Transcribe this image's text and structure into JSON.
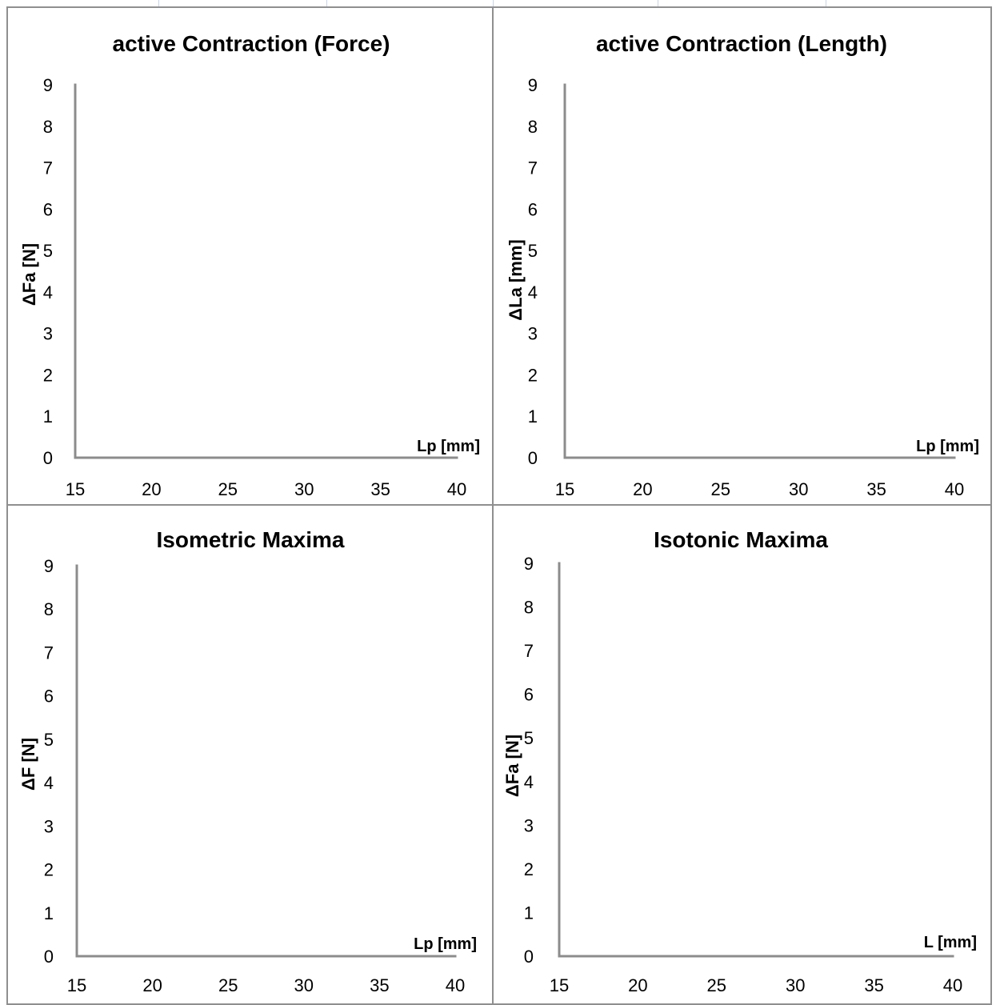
{
  "chart_data": [
    {
      "type": "scatter",
      "title": "active Contraction (Force)",
      "xlabel": "Lp [mm]",
      "ylabel": "ΔFa [N]",
      "xlim": [
        15,
        40
      ],
      "ylim": [
        0,
        9
      ],
      "x_ticks": [
        "15",
        "20",
        "25",
        "30",
        "35",
        "40"
      ],
      "y_ticks": [
        "0",
        "1",
        "2",
        "3",
        "4",
        "5",
        "6",
        "7",
        "8",
        "9"
      ],
      "series": [],
      "grid": false,
      "legend": "none",
      "axis_color": "#8c8c8c"
    },
    {
      "type": "scatter",
      "title": "active Contraction (Length)",
      "xlabel": "Lp [mm]",
      "ylabel": "ΔLa [mm]",
      "xlim": [
        15,
        40
      ],
      "ylim": [
        0,
        9
      ],
      "x_ticks": [
        "15",
        "20",
        "25",
        "30",
        "35",
        "40"
      ],
      "y_ticks": [
        "0",
        "1",
        "2",
        "3",
        "4",
        "5",
        "6",
        "7",
        "8",
        "9"
      ],
      "series": [],
      "grid": false,
      "legend": "none",
      "axis_color": "#8c8c8c"
    },
    {
      "type": "scatter",
      "title": "Isometric Maxima",
      "xlabel": "Lp [mm]",
      "ylabel": "ΔF [N]",
      "xlim": [
        15,
        40
      ],
      "ylim": [
        0,
        9
      ],
      "x_ticks": [
        "15",
        "20",
        "25",
        "30",
        "35",
        "40"
      ],
      "y_ticks": [
        "0",
        "1",
        "2",
        "3",
        "4",
        "5",
        "6",
        "7",
        "8",
        "9"
      ],
      "series": [],
      "grid": false,
      "legend": "none",
      "axis_color": "#8c8c8c"
    },
    {
      "type": "scatter",
      "title": "Isotonic Maxima",
      "xlabel": "L [mm]",
      "ylabel": "ΔFa [N]",
      "xlim": [
        15,
        40
      ],
      "ylim": [
        0,
        9
      ],
      "x_ticks": [
        "15",
        "20",
        "25",
        "30",
        "35",
        "40"
      ],
      "y_ticks": [
        "0",
        "1",
        "2",
        "3",
        "4",
        "5",
        "6",
        "7",
        "8",
        "9"
      ],
      "series": [],
      "grid": false,
      "legend": "none",
      "axis_color": "#8c8c8c"
    }
  ]
}
